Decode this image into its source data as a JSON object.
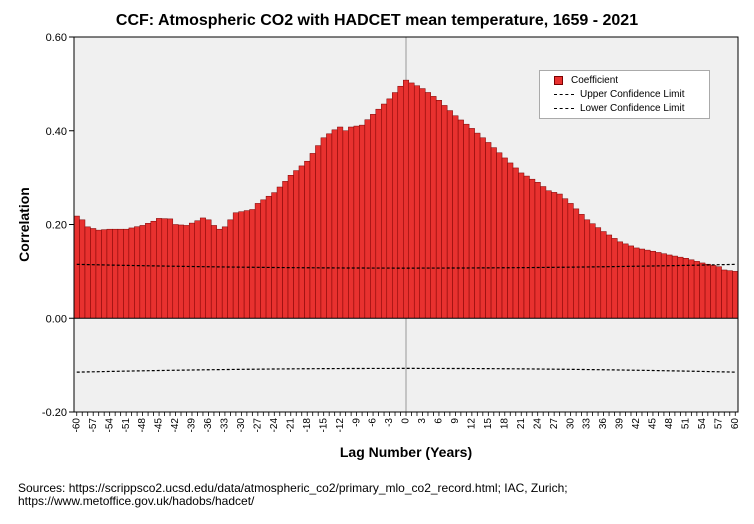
{
  "chart_data": {
    "type": "bar",
    "title": "CCF: Atmospheric CO2 with HADCET mean temperature, 1659 - 2021",
    "xlabel": "Lag Number (Years)",
    "ylabel": "Correlation",
    "ylim": [
      -0.2,
      0.6
    ],
    "yticks": [
      -0.2,
      0.0,
      0.2,
      0.4,
      0.6
    ],
    "ytick_labels": [
      "-0.20",
      "0.00",
      "0.20",
      "0.40",
      "0.60"
    ],
    "xtick_labels": [
      "-60",
      "-57",
      "-54",
      "-51",
      "-48",
      "-45",
      "-42",
      "-39",
      "-36",
      "-33",
      "-30",
      "-27",
      "-24",
      "-21",
      "-18",
      "-15",
      "-12",
      "-9",
      "-6",
      "-3",
      "0",
      "3",
      "6",
      "9",
      "12",
      "15",
      "18",
      "21",
      "24",
      "27",
      "30",
      "33",
      "36",
      "39",
      "42",
      "45",
      "48",
      "51",
      "54",
      "57",
      "60"
    ],
    "lag_min": -60,
    "lag_max": 60,
    "bar_color": "#e8312f",
    "bar_edge_color": "#7a0000",
    "plot_background": "#f0f0f0",
    "coefficient_anchors": [
      [
        -60,
        0.218
      ],
      [
        -59,
        0.21
      ],
      [
        -58,
        0.195
      ],
      [
        -56,
        0.188
      ],
      [
        -54,
        0.19
      ],
      [
        -51,
        0.19
      ],
      [
        -48,
        0.198
      ],
      [
        -46,
        0.207
      ],
      [
        -45,
        0.213
      ],
      [
        -43,
        0.212
      ],
      [
        -42,
        0.2
      ],
      [
        -40,
        0.198
      ],
      [
        -38,
        0.208
      ],
      [
        -37,
        0.214
      ],
      [
        -36,
        0.21
      ],
      [
        -35,
        0.198
      ],
      [
        -34,
        0.19
      ],
      [
        -33,
        0.195
      ],
      [
        -32,
        0.21
      ],
      [
        -31,
        0.225
      ],
      [
        -28,
        0.232
      ],
      [
        -27,
        0.245
      ],
      [
        -24,
        0.268
      ],
      [
        -22,
        0.292
      ],
      [
        -21,
        0.305
      ],
      [
        -18,
        0.335
      ],
      [
        -15,
        0.385
      ],
      [
        -13,
        0.402
      ],
      [
        -12,
        0.408
      ],
      [
        -11,
        0.4
      ],
      [
        -10,
        0.408
      ],
      [
        -8,
        0.412
      ],
      [
        -6,
        0.435
      ],
      [
        -3,
        0.468
      ],
      [
        -1,
        0.495
      ],
      [
        0,
        0.508
      ],
      [
        1,
        0.502
      ],
      [
        3,
        0.49
      ],
      [
        6,
        0.465
      ],
      [
        9,
        0.432
      ],
      [
        12,
        0.405
      ],
      [
        15,
        0.375
      ],
      [
        18,
        0.342
      ],
      [
        21,
        0.31
      ],
      [
        24,
        0.29
      ],
      [
        26,
        0.272
      ],
      [
        28,
        0.265
      ],
      [
        30,
        0.245
      ],
      [
        33,
        0.21
      ],
      [
        36,
        0.185
      ],
      [
        39,
        0.163
      ],
      [
        42,
        0.15
      ],
      [
        45,
        0.143
      ],
      [
        48,
        0.135
      ],
      [
        51,
        0.128
      ],
      [
        54,
        0.118
      ],
      [
        57,
        0.11
      ],
      [
        58,
        0.103
      ],
      [
        60,
        0.1
      ]
    ],
    "upper_confidence_limit": {
      "at_minus_60": 0.115,
      "at_0": 0.107,
      "at_60": 0.115
    },
    "lower_confidence_limit": {
      "at_minus_60": -0.115,
      "at_0": -0.107,
      "at_60": -0.115
    },
    "legend": {
      "position": "top-right",
      "entries": [
        "Coefficient",
        "Upper Confidence Limit",
        "Lower Confidence Limit"
      ]
    }
  },
  "source_text": "Sources: https://scrippsco2.ucsd.edu/data/atmospheric_co2/primary_mlo_co2_record.html; IAC, Zurich; https://www.metoffice.gov.uk/hadobs/hadcet/"
}
